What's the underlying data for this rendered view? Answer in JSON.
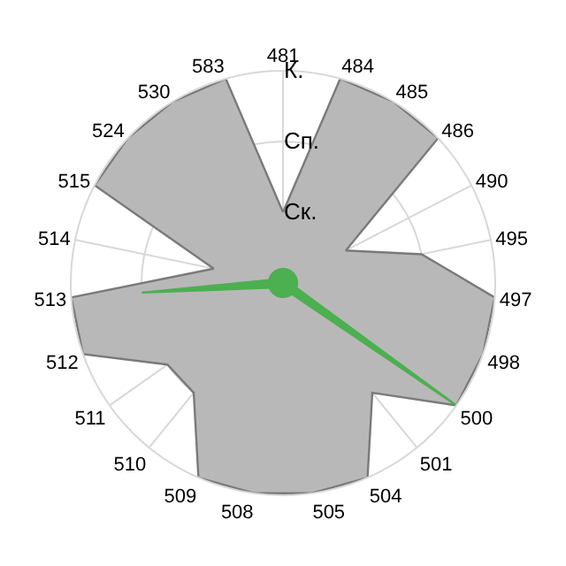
{
  "chart_data": {
    "type": "radar",
    "categories": [
      "481",
      "484",
      "485",
      "486",
      "490",
      "495",
      "497",
      "498",
      "500",
      "501",
      "504",
      "505",
      "508",
      "509",
      "510",
      "511",
      "512",
      "513",
      "514",
      "515",
      "524",
      "530",
      "583"
    ],
    "series": [
      {
        "color": "#b8b8b8",
        "values": [
          1,
          3,
          3,
          3,
          1,
          2,
          3,
          3,
          3,
          2,
          3,
          3,
          3,
          3,
          2,
          2,
          3,
          3,
          1,
          3,
          3,
          3,
          3
        ]
      },
      {
        "color": "#4caf50",
        "values": [
          0.2,
          0.2,
          0.2,
          0.2,
          0.2,
          0.2,
          0.2,
          0.2,
          3,
          0.2,
          0.2,
          0.2,
          0.2,
          0.2,
          0.2,
          0.2,
          0.2,
          2,
          0.2,
          0.2,
          0.2,
          0.2,
          0.2
        ]
      }
    ],
    "ylim": [
      0,
      3
    ],
    "yticks": [
      {
        "value": 1,
        "label": "Ск."
      },
      {
        "value": 2,
        "label": "Сп."
      },
      {
        "value": 3,
        "label": "К."
      }
    ],
    "grid": true,
    "marker": "none"
  }
}
